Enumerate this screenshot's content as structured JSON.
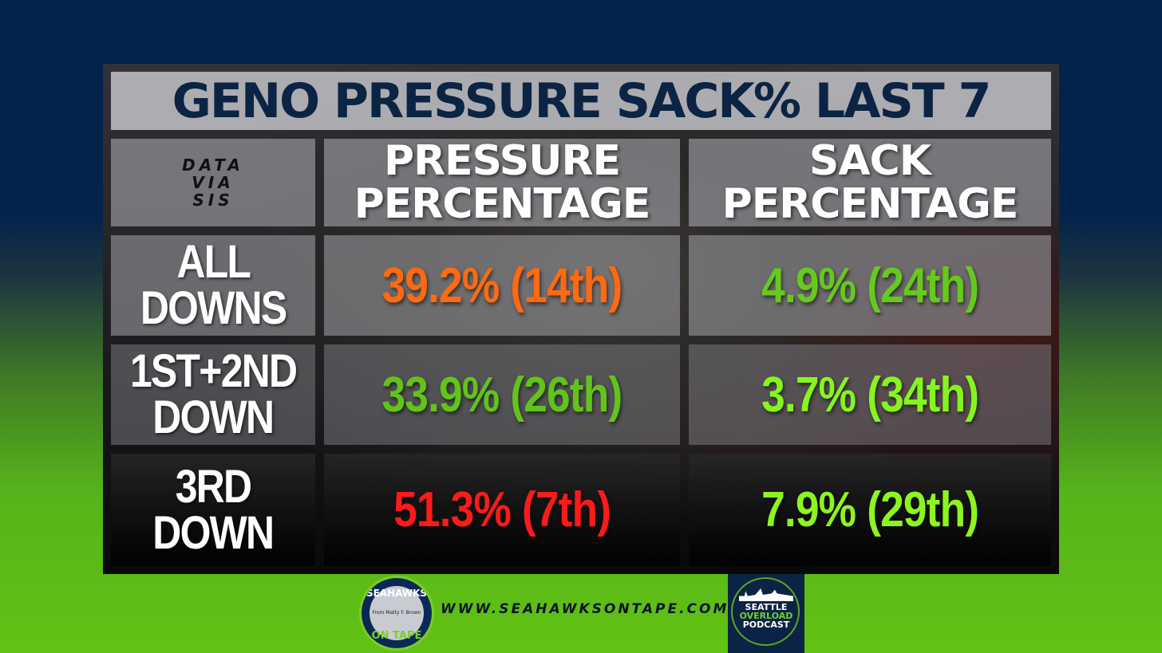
{
  "chart_data": {
    "type": "table",
    "title": "GENO PRESSURE SACK% LAST 7",
    "source_note": [
      "DATA",
      "VIA",
      "SIS"
    ],
    "columns": [
      [
        "PRESSURE",
        "PERCENTAGE"
      ],
      [
        "SACK",
        "PERCENTAGE"
      ]
    ],
    "rows": [
      {
        "label": [
          "ALL",
          "DOWNS"
        ],
        "pressure": {
          "text": "39.2% (14th)",
          "value": 39.2,
          "rank": "14th",
          "color": "#ff6a10"
        },
        "sack": {
          "text": "4.9% (24th)",
          "value": 4.9,
          "rank": "24th",
          "color": "#66c91e"
        }
      },
      {
        "label": [
          "1ST+2ND",
          "DOWN"
        ],
        "pressure": {
          "text": "33.9% (26th)",
          "value": 33.9,
          "rank": "26th",
          "color": "#62c41a"
        },
        "sack": {
          "text": "3.7% (34th)",
          "value": 3.7,
          "rank": "34th",
          "color": "#86f51e"
        }
      },
      {
        "label": [
          "3RD",
          "DOWN"
        ],
        "pressure": {
          "text": "51.3% (7th)",
          "value": 51.3,
          "rank": "7th",
          "color": "#ff1a1a"
        },
        "sack": {
          "text": "7.9% (29th)",
          "value": 7.9,
          "rank": "29th",
          "color": "#8cf51e"
        }
      }
    ]
  },
  "footer": {
    "url": "WWW.SEAHAWKSONTAPE.COM",
    "logo_left": {
      "line1": "SEAHAWKS",
      "line2": "From Matty F. Brown",
      "line3": "ON TAPE"
    },
    "logo_right": {
      "line1": "SEATTLE",
      "line2": "OVERLOAD",
      "line3": "PODCAST"
    }
  }
}
